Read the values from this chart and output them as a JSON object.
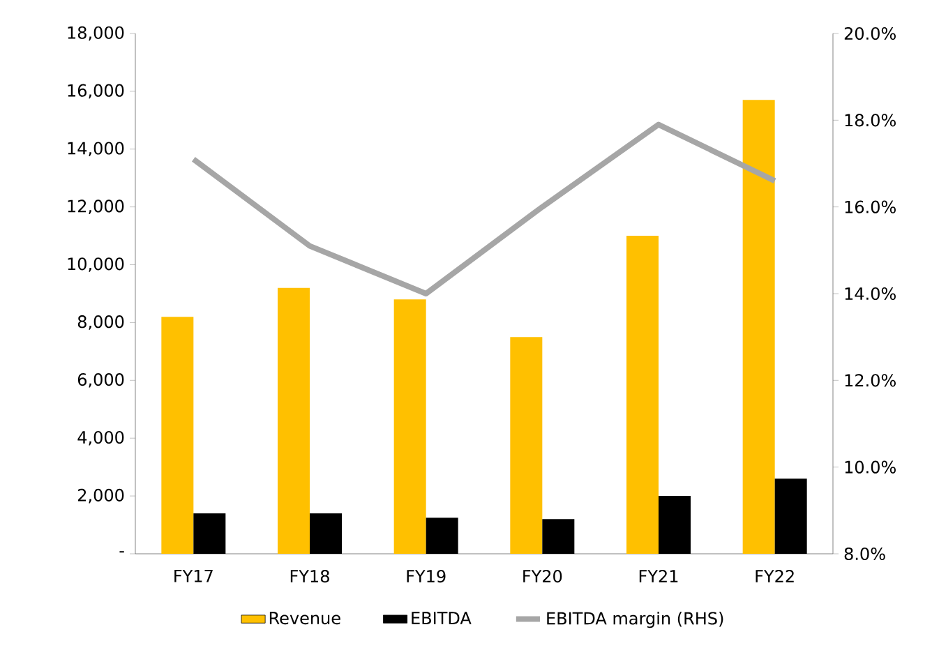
{
  "chart_data": {
    "type": "bar",
    "categories": [
      "FY17",
      "FY18",
      "FY19",
      "FY20",
      "FY21",
      "FY22"
    ],
    "series": [
      {
        "name": "Revenue",
        "color": "#ffc000",
        "values": [
          8200,
          9200,
          8800,
          7500,
          11000,
          15700
        ]
      },
      {
        "name": "EBITDA",
        "color": "#000000",
        "values": [
          1400,
          1400,
          1250,
          1200,
          2000,
          2600
        ]
      },
      {
        "name": "EBITDA margin (RHS)",
        "type": "line",
        "axis": "y2",
        "color": "#a6a6a6",
        "marker": "none",
        "values": [
          17.1,
          15.1,
          14.0,
          16.0,
          17.9,
          16.6
        ]
      }
    ],
    "ylim": [
      0,
      18000
    ],
    "yticks": [
      {
        "value": 0,
        "label": "-"
      },
      {
        "value": 2000,
        "label": "2,000"
      },
      {
        "value": 4000,
        "label": "4,000"
      },
      {
        "value": 6000,
        "label": "6,000"
      },
      {
        "value": 8000,
        "label": "8,000"
      },
      {
        "value": 10000,
        "label": "10,000"
      },
      {
        "value": 12000,
        "label": "12,000"
      },
      {
        "value": 14000,
        "label": "14,000"
      },
      {
        "value": 16000,
        "label": "16,000"
      },
      {
        "value": 18000,
        "label": "18,000"
      }
    ],
    "y2lim": [
      8,
      20
    ],
    "y2ticks": [
      {
        "value": 8,
        "label": "8.0%"
      },
      {
        "value": 10,
        "label": "10.0%"
      },
      {
        "value": 12,
        "label": "12.0%"
      },
      {
        "value": 14,
        "label": "14.0%"
      },
      {
        "value": 16,
        "label": "16.0%"
      },
      {
        "value": 18,
        "label": "18.0%"
      },
      {
        "value": 20,
        "label": "20.0%"
      }
    ],
    "grid": false,
    "legend": "bottom"
  }
}
